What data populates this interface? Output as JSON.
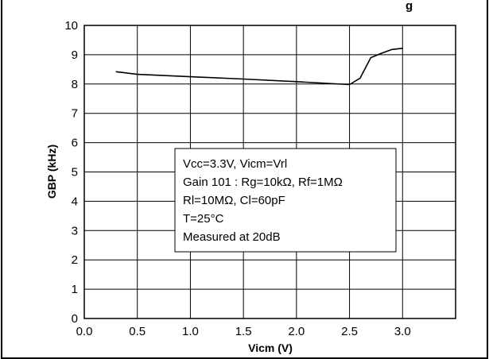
{
  "chart_data": {
    "type": "line",
    "title": "g",
    "xlabel": "Vicm (V)",
    "ylabel": "GBP (kHz)",
    "xlim": [
      0.0,
      3.5
    ],
    "ylim": [
      0,
      10
    ],
    "x_ticks": [
      "0.0",
      "0.5",
      "1.0",
      "1.5",
      "2.0",
      "2.5",
      "3.0"
    ],
    "y_ticks": [
      "0",
      "1",
      "2",
      "3",
      "4",
      "5",
      "6",
      "7",
      "8",
      "9",
      "10"
    ],
    "grid": true,
    "series": [
      {
        "x": [
          0.3,
          0.5,
          1.0,
          1.5,
          2.0,
          2.5,
          2.6,
          2.7,
          2.8,
          2.9,
          3.0
        ],
        "y": [
          8.42,
          8.33,
          8.25,
          8.17,
          8.08,
          7.98,
          8.2,
          8.9,
          9.05,
          9.18,
          9.22
        ]
      }
    ],
    "annotation": {
      "lines": [
        "Vcc=3.3V, Vicm=Vrl",
        "Gain 101 : Rg=10kΩ, Rf=1MΩ",
        "Rl=10MΩ, Cl=60pF",
        "T=25°C",
        "Measured at 20dB"
      ]
    },
    "colors": {
      "line": "#000000",
      "grid": "#000000",
      "background": "#ffffff"
    }
  }
}
